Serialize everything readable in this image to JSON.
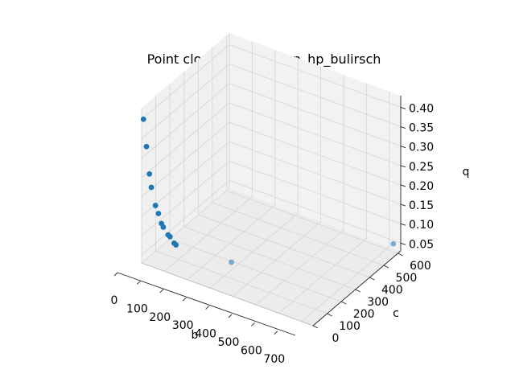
{
  "chart_data": {
    "type": "scatter",
    "projection": "3d",
    "title": "Point cloud for gaussian_hp_bulirsch",
    "xlabel": "b",
    "ylabel": "c",
    "zlabel": "q",
    "xlim": [
      0,
      750
    ],
    "ylim": [
      0,
      620
    ],
    "zlim": [
      0.03,
      0.43
    ],
    "xticks": [
      "0",
      "100",
      "200",
      "300",
      "400",
      "500",
      "600",
      "700"
    ],
    "yticks": [
      "0",
      "100",
      "200",
      "300",
      "400",
      "500",
      "600"
    ],
    "zticks": [
      "0.05",
      "0.10",
      "0.15",
      "0.20",
      "0.25",
      "0.30",
      "0.35",
      "0.40"
    ],
    "grid": true,
    "color": "#1f77b4",
    "points": [
      {
        "b": 5,
        "c": 5,
        "q": 0.4
      },
      {
        "b": 15,
        "c": 10,
        "q": 0.33
      },
      {
        "b": 25,
        "c": 15,
        "q": 0.26
      },
      {
        "b": 30,
        "c": 20,
        "q": 0.225
      },
      {
        "b": 45,
        "c": 25,
        "q": 0.18
      },
      {
        "b": 55,
        "c": 30,
        "q": 0.16
      },
      {
        "b": 65,
        "c": 35,
        "q": 0.135
      },
      {
        "b": 70,
        "c": 40,
        "q": 0.125
      },
      {
        "b": 85,
        "c": 50,
        "q": 0.105
      },
      {
        "b": 90,
        "c": 55,
        "q": 0.1
      },
      {
        "b": 105,
        "c": 60,
        "q": 0.085
      },
      {
        "b": 110,
        "c": 65,
        "q": 0.08
      },
      {
        "b": 300,
        "c": 150,
        "q": 0.05
      },
      {
        "b": 730,
        "c": 600,
        "q": 0.05
      }
    ]
  }
}
